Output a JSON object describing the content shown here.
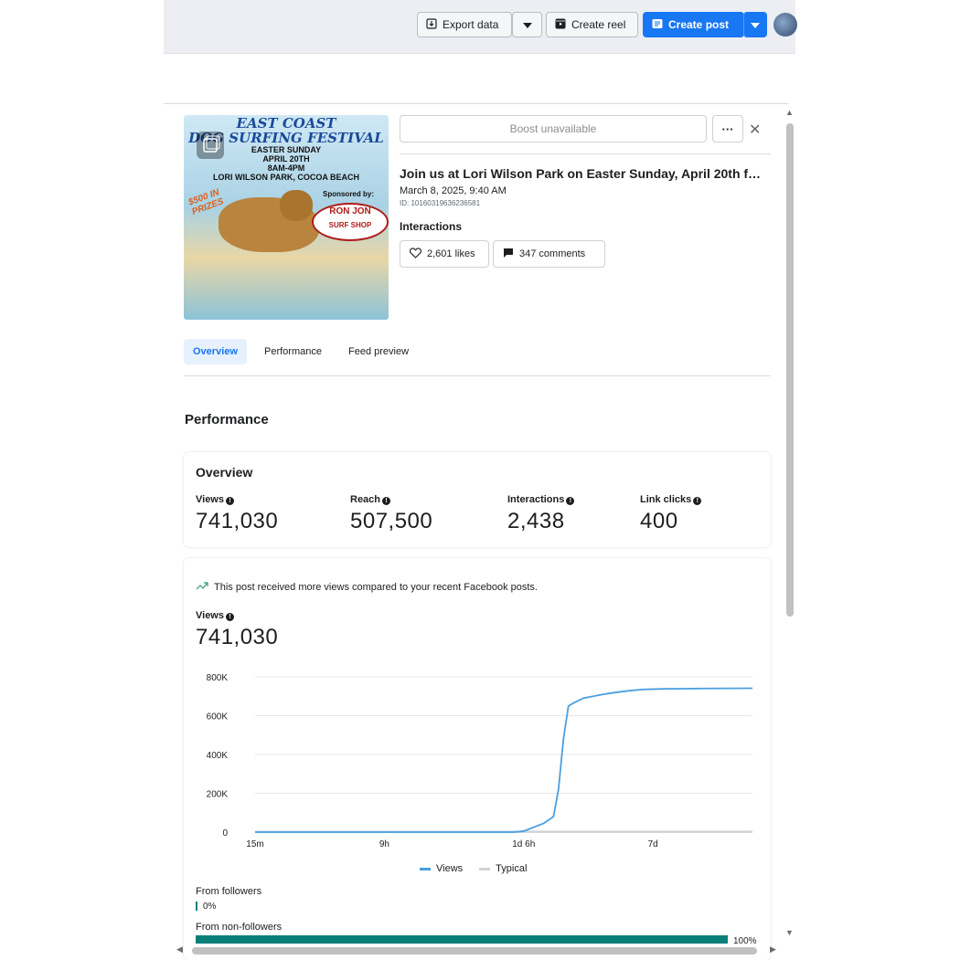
{
  "toolbar": {
    "export_label": "Export data",
    "create_reel_label": "Create reel",
    "create_post_label": "Create post"
  },
  "thumbnail": {
    "title_line1": "EAST COAST",
    "title_line2": "DOG SURFING FESTIVAL",
    "line1": "EASTER SUNDAY",
    "line2": "APRIL 20TH",
    "line3": "8AM-4PM",
    "line4": "LORI WILSON PARK, COCOA BEACH",
    "sponsor": "Sponsored by:",
    "prize": "$500 IN PRIZES",
    "brand_line1": "RON JON",
    "brand_line2": "SURF SHOP"
  },
  "post": {
    "boost_label": "Boost unavailable",
    "more_label": "···",
    "close_label": "✕",
    "title": "Join us at Lori Wilson Park on Easter Sunday, April 20th f…",
    "date": "March 8, 2025, 9:40 AM",
    "id": "ID: 10160319636236581",
    "interactions_label": "Interactions",
    "likes": "2,601 likes",
    "comments": "347 comments"
  },
  "tabs": [
    "Overview",
    "Performance",
    "Feed preview"
  ],
  "performance": {
    "section_title": "Performance",
    "overview_title": "Overview",
    "metrics": [
      {
        "label": "Views",
        "value": "741,030"
      },
      {
        "label": "Reach",
        "value": "507,500"
      },
      {
        "label": "Interactions",
        "value": "2,438"
      },
      {
        "label": "Link clicks",
        "value": "400"
      }
    ],
    "insight": "This post received more views compared to your recent Facebook posts.",
    "views_label": "Views",
    "views_value": "741,030",
    "from_followers_label": "From followers",
    "from_followers_value": "0%",
    "from_followers_fraction": 0,
    "from_nonfollowers_label": "From non-followers",
    "from_nonfollowers_value": "100%",
    "from_nonfollowers_fraction": 1
  },
  "chart_data": {
    "type": "line",
    "ylim": [
      0,
      800000
    ],
    "y_ticks": [
      "800K",
      "600K",
      "400K",
      "200K",
      "0"
    ],
    "y_tick_values": [
      800000,
      600000,
      400000,
      200000,
      0
    ],
    "x_ticks": [
      "15m",
      "9h",
      "1d 6h",
      "7d"
    ],
    "x_tick_positions": [
      0,
      0.26,
      0.54,
      0.8
    ],
    "series": [
      {
        "name": "Views",
        "color": "#4a9fe0",
        "x": [
          0,
          0.1,
          0.2,
          0.3,
          0.4,
          0.5,
          0.52,
          0.54,
          0.56,
          0.58,
          0.6,
          0.61,
          0.62,
          0.63,
          0.64,
          0.66,
          0.68,
          0.7,
          0.72,
          0.75,
          0.78,
          0.82,
          0.86,
          0.9,
          0.95,
          1.0
        ],
        "values": [
          0,
          0,
          0,
          0,
          0,
          0,
          0,
          5000,
          25000,
          45000,
          80000,
          220000,
          480000,
          650000,
          665000,
          690000,
          700000,
          710000,
          718000,
          728000,
          735000,
          738000,
          739000,
          740000,
          740500,
          741030
        ]
      },
      {
        "name": "Typical",
        "color": "#cfd3d8",
        "x": [
          0,
          1.0
        ],
        "values": [
          2000,
          2000
        ]
      }
    ]
  }
}
